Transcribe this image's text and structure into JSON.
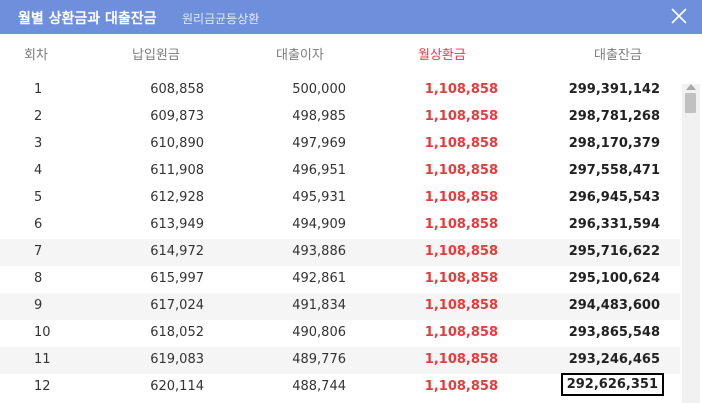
{
  "header": {
    "title": "월별 상환금과 대출잔금",
    "subtitle": "원리금균등상환"
  },
  "columns": {
    "round": "회차",
    "principal": "납입원금",
    "interest": "대출이자",
    "payment": "월상환금",
    "balance": "대출잔금"
  },
  "rows": [
    {
      "round": "1",
      "principal": "608,858",
      "interest": "500,000",
      "payment": "1,108,858",
      "balance": "299,391,142"
    },
    {
      "round": "2",
      "principal": "609,873",
      "interest": "498,985",
      "payment": "1,108,858",
      "balance": "298,781,268"
    },
    {
      "round": "3",
      "principal": "610,890",
      "interest": "497,969",
      "payment": "1,108,858",
      "balance": "298,170,379"
    },
    {
      "round": "4",
      "principal": "611,908",
      "interest": "496,951",
      "payment": "1,108,858",
      "balance": "297,558,471"
    },
    {
      "round": "5",
      "principal": "612,928",
      "interest": "495,931",
      "payment": "1,108,858",
      "balance": "296,945,543"
    },
    {
      "round": "6",
      "principal": "613,949",
      "interest": "494,909",
      "payment": "1,108,858",
      "balance": "296,331,594"
    },
    {
      "round": "7",
      "principal": "614,972",
      "interest": "493,886",
      "payment": "1,108,858",
      "balance": "295,716,622"
    },
    {
      "round": "8",
      "principal": "615,997",
      "interest": "492,861",
      "payment": "1,108,858",
      "balance": "295,100,624"
    },
    {
      "round": "9",
      "principal": "617,024",
      "interest": "491,834",
      "payment": "1,108,858",
      "balance": "294,483,600"
    },
    {
      "round": "10",
      "principal": "618,052",
      "interest": "490,806",
      "payment": "1,108,858",
      "balance": "293,865,548"
    },
    {
      "round": "11",
      "principal": "619,083",
      "interest": "489,776",
      "payment": "1,108,858",
      "balance": "293,246,465"
    },
    {
      "round": "12",
      "principal": "620,114",
      "interest": "488,744",
      "payment": "1,108,858",
      "balance": "292,626,351"
    }
  ],
  "colors": {
    "header_bg": "#6d8fdc",
    "payment_red": "#e53b3b"
  },
  "icons": {
    "close": "close-icon"
  }
}
